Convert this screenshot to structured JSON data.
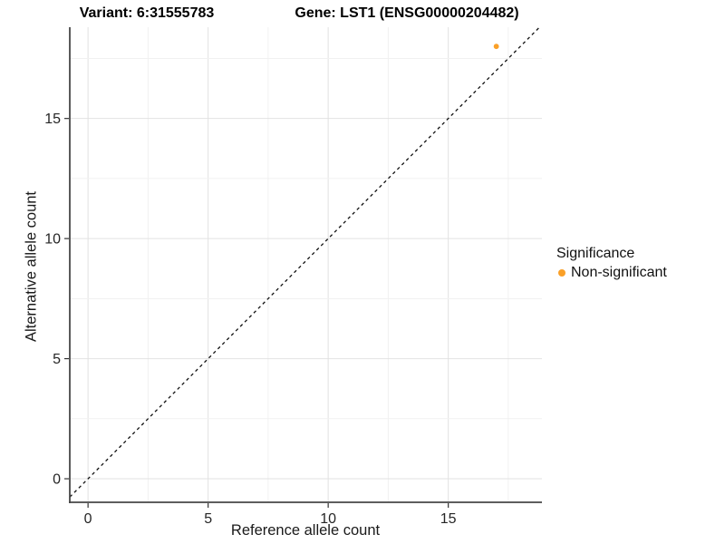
{
  "header": {
    "variant_title": "Variant: 6:31555783",
    "gene_title": "Gene: LST1 (ENSG00000204482)"
  },
  "axes": {
    "x": {
      "label": "Reference allele count",
      "tick_labels": [
        "0",
        "5",
        "10",
        "15"
      ]
    },
    "y": {
      "label": "Alternative allele count",
      "tick_labels": [
        "0",
        "5",
        "10",
        "15"
      ]
    }
  },
  "legend": {
    "title": "Significance",
    "items": [
      {
        "label": "Non-significant",
        "color": "#FAA028"
      }
    ]
  },
  "chart_data": {
    "type": "scatter",
    "title": "Variant: 6:31555783 | Gene: LST1 (ENSG00000204482)",
    "xlabel": "Reference allele count",
    "ylabel": "Alternative allele count",
    "xlim": [
      -0.76,
      18.9
    ],
    "ylim": [
      -0.98,
      18.8
    ],
    "x_major_ticks": [
      0,
      5,
      10,
      15
    ],
    "y_major_ticks": [
      0,
      5,
      10,
      15
    ],
    "minor_grid_step": 2.5,
    "grid": "major+minor",
    "legend_position": "right-center",
    "series": [
      {
        "name": "Non-significant",
        "color": "#FAA028",
        "points": [
          [
            17,
            18
          ]
        ]
      }
    ],
    "reference_line": {
      "type": "identity y=x",
      "style": "dashed",
      "color": "#111111"
    }
  },
  "colors": {
    "background": "#FFFFFF",
    "axis_line": "#474747",
    "tick_mark": "#333333",
    "tick_label": "#262626",
    "grid_major": "#E2E2E2",
    "grid_minor": "#F1F1F1",
    "point_orange": "#FAA028",
    "dashed_line": "#111111"
  }
}
